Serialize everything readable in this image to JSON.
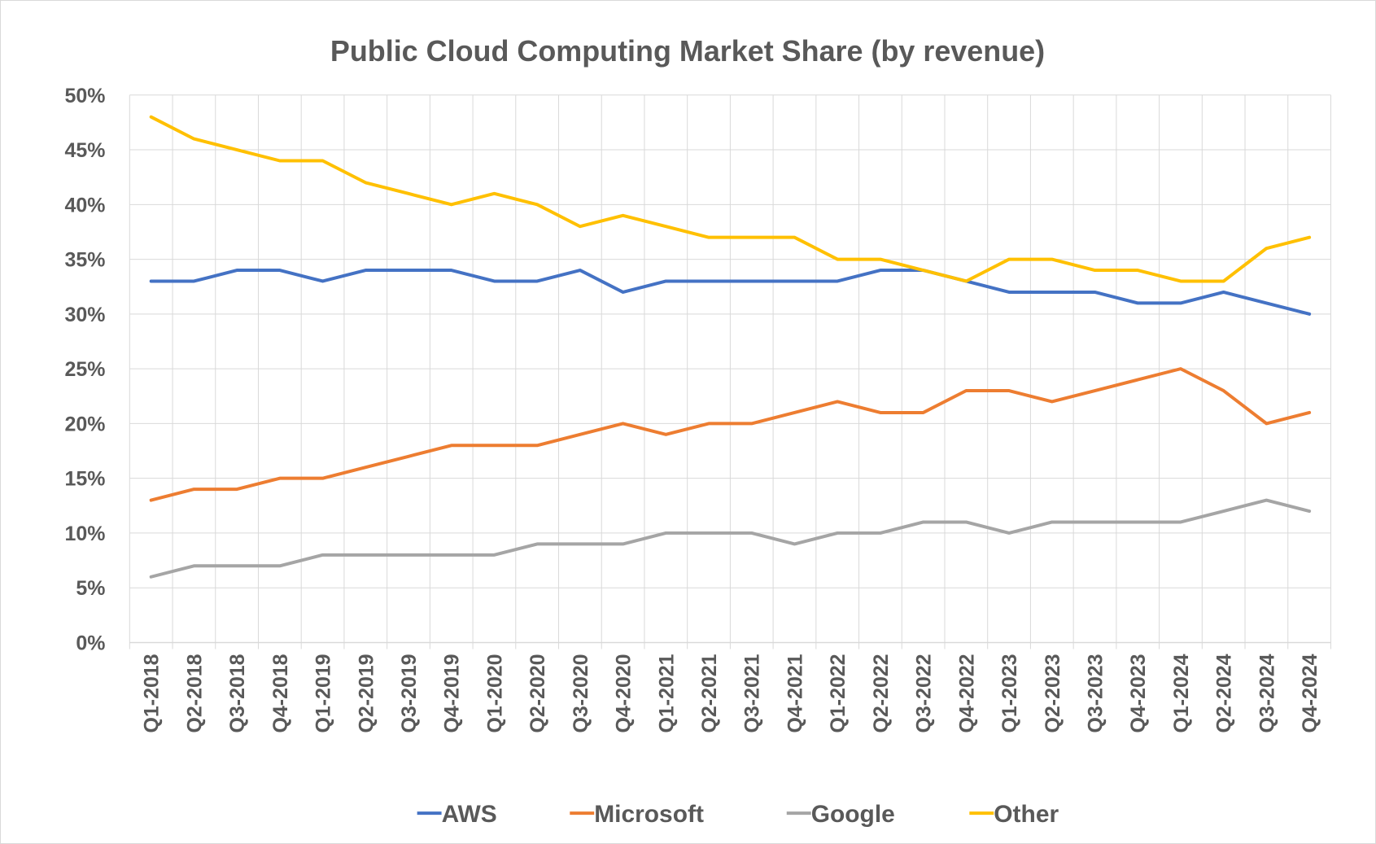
{
  "chart_data": {
    "type": "line",
    "title": "Public Cloud Computing Market Share (by revenue)",
    "xlabel": "",
    "ylabel": "",
    "ylim": [
      0,
      50
    ],
    "y_ticks": [
      "0%",
      "5%",
      "10%",
      "15%",
      "20%",
      "25%",
      "30%",
      "35%",
      "40%",
      "45%",
      "50%"
    ],
    "grid": true,
    "legend_position": "bottom",
    "categories": [
      "Q1-2018",
      "Q2-2018",
      "Q3-2018",
      "Q4-2018",
      "Q1-2019",
      "Q2-2019",
      "Q3-2019",
      "Q4-2019",
      "Q1-2020",
      "Q2-2020",
      "Q3-2020",
      "Q4-2020",
      "Q1-2021",
      "Q2-2021",
      "Q3-2021",
      "Q4-2021",
      "Q1-2022",
      "Q2-2022",
      "Q3-2022",
      "Q4-2022",
      "Q1-2023",
      "Q2-2023",
      "Q3-2023",
      "Q4-2023",
      "Q1-2024",
      "Q2-2024",
      "Q3-2024",
      "Q4-2024"
    ],
    "series": [
      {
        "name": "AWS",
        "color": "#4472c4",
        "values": [
          33,
          33,
          34,
          34,
          33,
          34,
          34,
          34,
          33,
          33,
          34,
          32,
          33,
          33,
          33,
          33,
          33,
          34,
          34,
          33,
          32,
          32,
          32,
          31,
          31,
          32,
          31,
          30
        ]
      },
      {
        "name": "Microsoft",
        "color": "#ed7d31",
        "values": [
          13,
          14,
          14,
          15,
          15,
          16,
          17,
          18,
          18,
          18,
          19,
          20,
          19,
          20,
          20,
          21,
          22,
          21,
          21,
          23,
          23,
          22,
          23,
          24,
          25,
          23,
          20,
          21
        ]
      },
      {
        "name": "Google",
        "color": "#a5a5a5",
        "values": [
          6,
          7,
          7,
          7,
          8,
          8,
          8,
          8,
          8,
          9,
          9,
          9,
          10,
          10,
          10,
          9,
          10,
          10,
          11,
          11,
          10,
          11,
          11,
          11,
          11,
          12,
          13,
          12
        ]
      },
      {
        "name": "Other",
        "color": "#ffc000",
        "values": [
          48,
          46,
          45,
          44,
          44,
          42,
          41,
          40,
          41,
          40,
          38,
          39,
          38,
          37,
          37,
          37,
          35,
          35,
          34,
          33,
          35,
          35,
          34,
          34,
          33,
          33,
          36,
          37
        ]
      }
    ]
  }
}
